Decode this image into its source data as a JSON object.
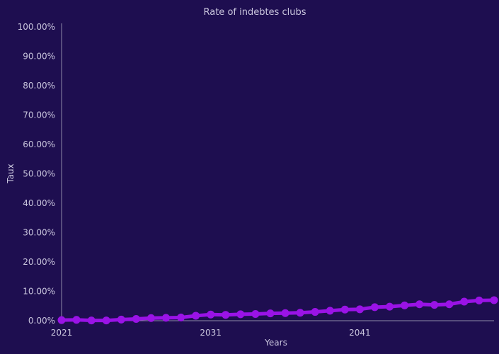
{
  "chart_data": {
    "type": "line",
    "title": "Rate of indebtes clubs",
    "xlabel": "Years",
    "ylabel": "Taux",
    "x": [
      2021,
      2022,
      2023,
      2024,
      2025,
      2026,
      2027,
      2028,
      2029,
      2030,
      2031,
      2032,
      2033,
      2034,
      2035,
      2036,
      2037,
      2038,
      2039,
      2040,
      2041,
      2042,
      2043,
      2044,
      2045,
      2046,
      2047,
      2048,
      2049,
      2050
    ],
    "series": [
      {
        "values": [
          0.2,
          0.3,
          0.1,
          0.1,
          0.4,
          0.6,
          0.9,
          1.0,
          1.1,
          1.7,
          2.1,
          2.0,
          2.2,
          2.3,
          2.5,
          2.6,
          2.7,
          3.0,
          3.4,
          3.8,
          3.9,
          4.6,
          4.8,
          5.2,
          5.6,
          5.4,
          5.6,
          6.5,
          6.9,
          7.0
        ]
      }
    ],
    "xticks": [
      "2021",
      "2031",
      "2041"
    ],
    "xlim": [
      2021,
      2050
    ],
    "yticks": [
      "0.00%",
      "10.00%",
      "20.00%",
      "30.00%",
      "40.00%",
      "50.00%",
      "60.00%",
      "70.00%",
      "80.00%",
      "90.00%",
      "100.00%"
    ],
    "ylim": [
      0,
      100
    ],
    "grid": false,
    "colors": {
      "background": "#1e0e50",
      "series": "#9a13e6",
      "axis": "#8f89a8",
      "text": "#c9c5dd"
    }
  }
}
